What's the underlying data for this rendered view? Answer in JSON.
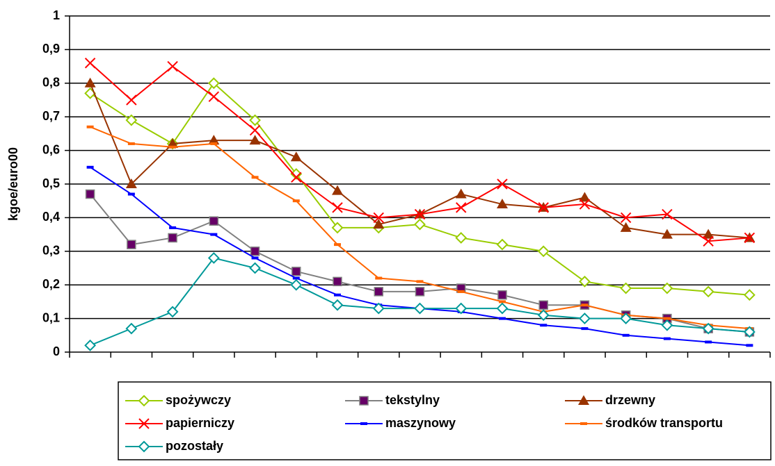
{
  "chart_data": {
    "type": "line",
    "y_label": "kgoe/euro00",
    "categories": [
      null,
      null,
      null,
      null,
      null,
      null,
      null,
      null,
      null,
      null,
      null,
      null,
      null,
      null,
      null,
      null,
      null
    ],
    "ylim": [
      0,
      1
    ],
    "yticks": [
      0,
      {
        "value": 0.1,
        "label": "0,1"
      },
      {
        "value": 0.2,
        "label": "0,2"
      },
      {
        "value": 0.3,
        "label": "0,3"
      },
      {
        "value": 0.4,
        "label": "0,4"
      },
      {
        "value": 0.5,
        "label": "0,5"
      },
      {
        "value": 0.6,
        "label": "0,6"
      },
      {
        "value": 0.7,
        "label": "0,7"
      },
      {
        "value": 0.8,
        "label": "0,8"
      },
      {
        "value": 0.9,
        "label": "0,9"
      },
      1
    ],
    "grid": true,
    "legend": "bottom",
    "series": [
      {
        "name": "spożywczy",
        "color": "#99cc00",
        "marker": "diamond",
        "values": [
          0.77,
          0.69,
          0.62,
          0.8,
          0.69,
          0.53,
          0.37,
          0.37,
          0.38,
          0.34,
          0.32,
          0.3,
          0.21,
          0.19,
          0.19,
          0.18,
          0.17
        ]
      },
      {
        "name": "tekstylny",
        "color": "#808080",
        "marker": "square",
        "marker_color": "#660066",
        "values": [
          0.47,
          0.32,
          0.34,
          0.39,
          0.3,
          0.24,
          0.21,
          0.18,
          0.18,
          0.19,
          0.17,
          0.14,
          0.14,
          0.11,
          0.1,
          0.07,
          0.06
        ]
      },
      {
        "name": "drzewny",
        "color": "#993300",
        "marker": "triangle",
        "values": [
          0.8,
          0.5,
          0.62,
          0.63,
          0.63,
          0.58,
          0.48,
          0.38,
          0.41,
          0.47,
          0.44,
          0.43,
          0.46,
          0.37,
          0.35,
          0.35,
          0.34
        ]
      },
      {
        "name": "papierniczy",
        "color": "#ff0000",
        "marker": "x",
        "values": [
          0.86,
          0.75,
          0.85,
          0.76,
          0.66,
          0.52,
          0.43,
          0.4,
          0.41,
          0.43,
          0.5,
          0.43,
          0.44,
          0.4,
          0.41,
          0.33,
          0.34
        ]
      },
      {
        "name": "maszynowy",
        "color": "#0000ff",
        "marker": "dash",
        "values": [
          0.55,
          0.47,
          0.37,
          0.35,
          0.28,
          0.22,
          0.17,
          0.14,
          0.13,
          0.12,
          0.1,
          0.08,
          0.07,
          0.05,
          0.04,
          0.03,
          0.02
        ]
      },
      {
        "name": "środków transportu",
        "color": "#ff6600",
        "marker": "dash",
        "values": [
          0.67,
          0.62,
          0.61,
          0.62,
          0.52,
          0.45,
          0.32,
          0.22,
          0.21,
          0.18,
          0.15,
          0.12,
          0.14,
          0.11,
          0.1,
          0.08,
          0.07
        ]
      },
      {
        "name": "pozostały",
        "color": "#009999",
        "marker": "diamond",
        "values": [
          0.02,
          0.07,
          0.12,
          0.28,
          0.25,
          0.2,
          0.14,
          0.13,
          0.13,
          0.13,
          0.13,
          0.11,
          0.1,
          0.1,
          0.08,
          0.07,
          0.06
        ]
      }
    ]
  }
}
